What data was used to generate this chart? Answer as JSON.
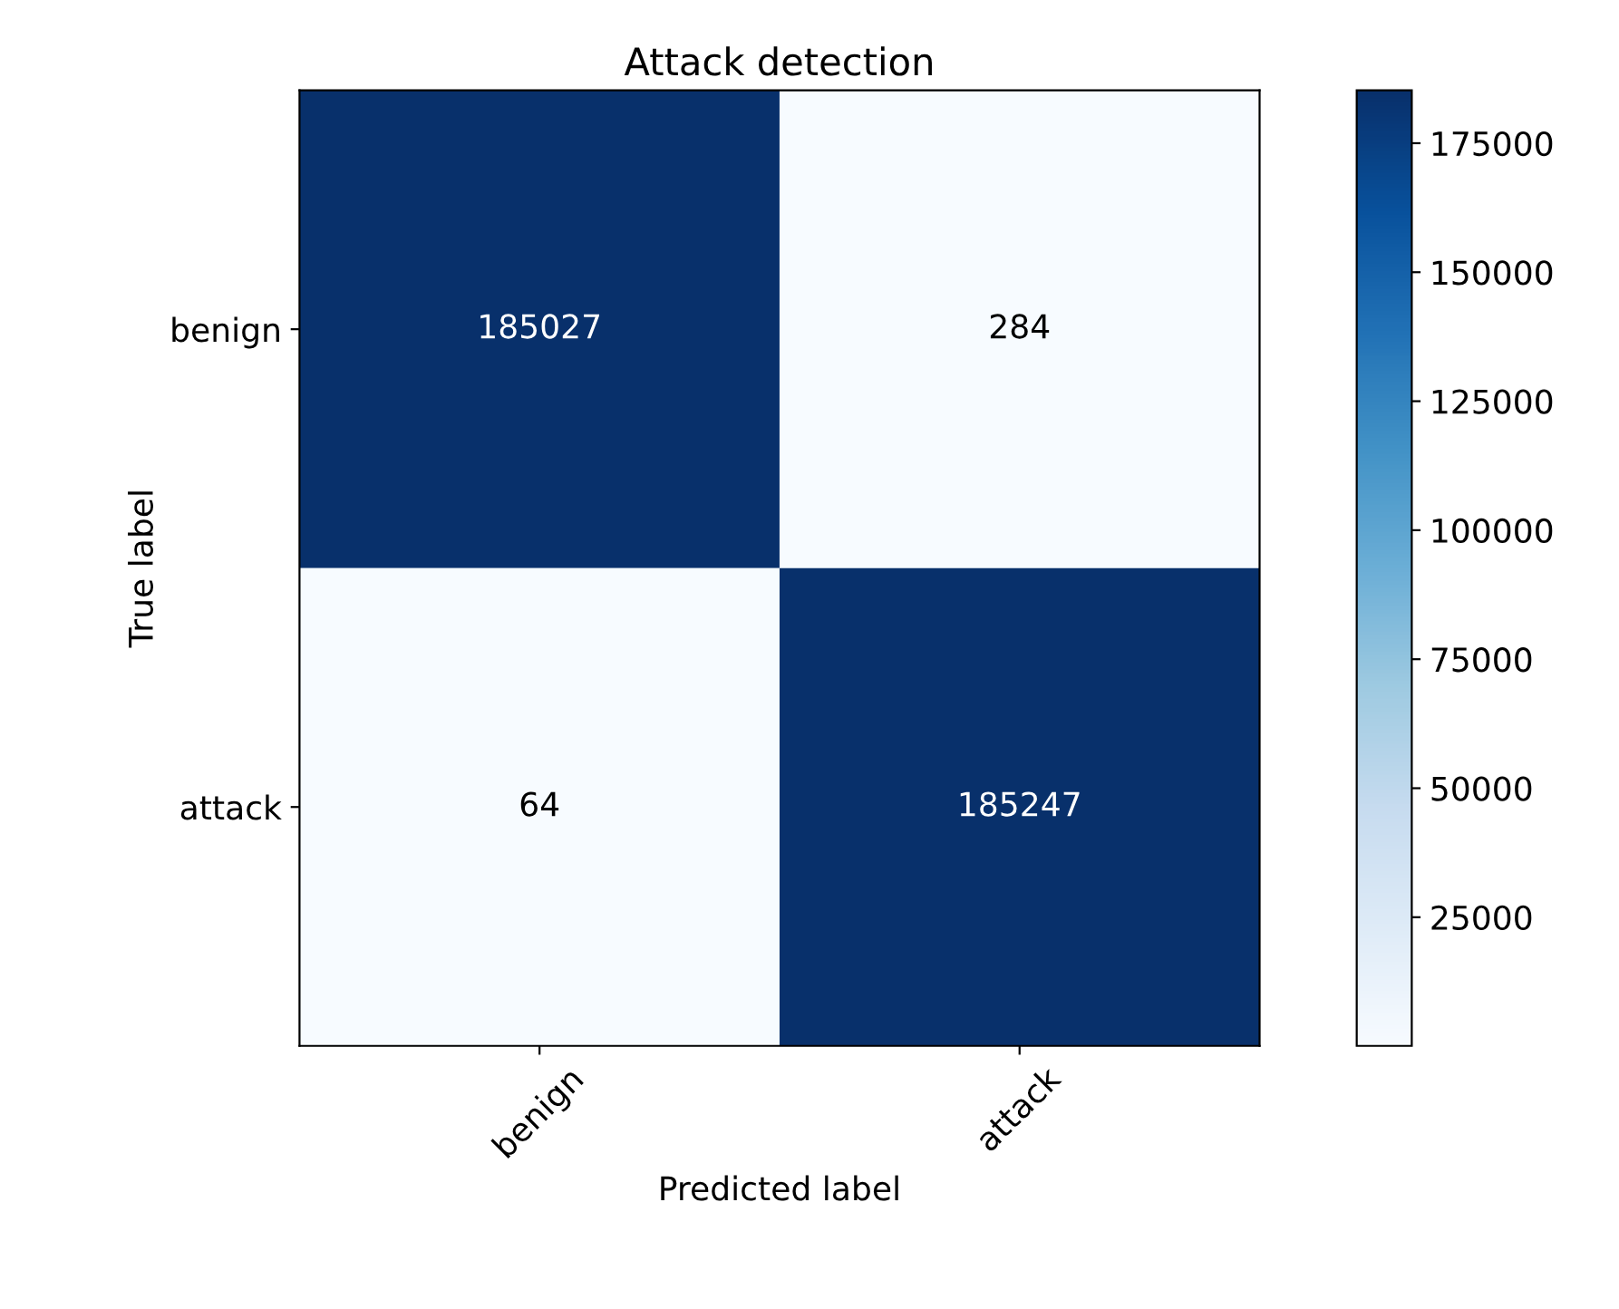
{
  "chart_data": {
    "type": "heatmap",
    "title": "Attack detection",
    "xlabel": "Predicted label",
    "ylabel": "True label",
    "categories": [
      "benign",
      "attack"
    ],
    "y_categories": [
      "benign",
      "attack"
    ],
    "cells": [
      [
        185027,
        284
      ],
      [
        64,
        185247
      ]
    ],
    "clim": [
      64,
      185247
    ],
    "cticks": [
      25000,
      50000,
      75000,
      100000,
      125000,
      150000,
      175000
    ],
    "data_labels": true,
    "grid": false
  }
}
